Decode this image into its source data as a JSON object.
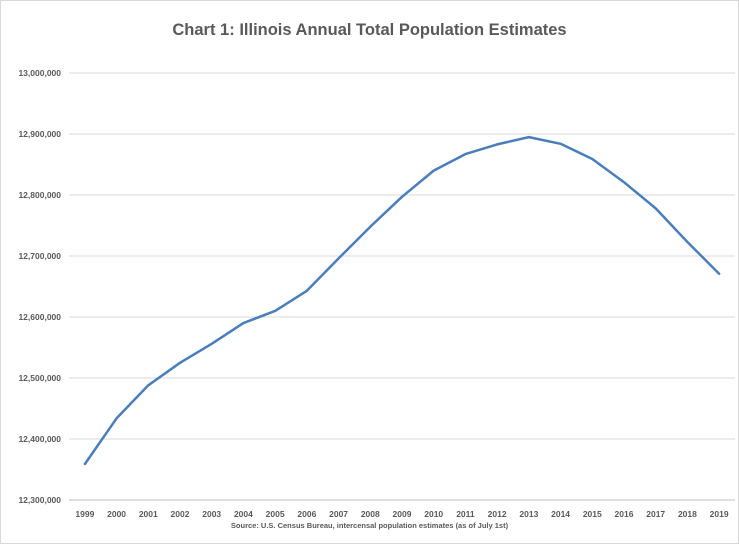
{
  "chart_data": {
    "type": "line",
    "title": "Chart 1: Illinois Annual Total Population Estimates",
    "xlabel": "",
    "ylabel": "",
    "categories": [
      "1999",
      "2000",
      "2001",
      "2002",
      "2003",
      "2004",
      "2005",
      "2006",
      "2007",
      "2008",
      "2009",
      "2010",
      "2011",
      "2012",
      "2013",
      "2014",
      "2015",
      "2016",
      "2017",
      "2018",
      "2019"
    ],
    "series": [
      {
        "values": [
          12359000,
          12434000,
          12488000,
          12525000,
          12556000,
          12590000,
          12610000,
          12643000,
          12696000,
          12748000,
          12797000,
          12840000,
          12867000,
          12883000,
          12895000,
          12884000,
          12859000,
          12821000,
          12778000,
          12723000,
          12671000
        ],
        "color": "#4a7ebb"
      }
    ],
    "ylim": [
      12300000,
      13000000
    ],
    "yticks": [
      "12,300,000",
      "12,400,000",
      "12,500,000",
      "12,600,000",
      "12,700,000",
      "12,800,000",
      "12,900,000",
      "13,000,000"
    ],
    "grid": true,
    "legend": "none",
    "source": "Source: U.S. Census Bureau, intercensal population estimates (as of July 1st)"
  }
}
